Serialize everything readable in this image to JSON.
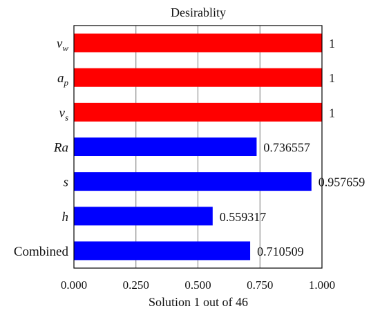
{
  "chart_data": {
    "type": "bar",
    "orientation": "horizontal",
    "title": "Desirablity",
    "xlabel": "Solution 1 out of 46",
    "ylabel": "",
    "xlim": [
      0,
      1
    ],
    "x_ticks": [
      "0.000",
      "0.250",
      "0.500",
      "0.750",
      "1.000"
    ],
    "grid": true,
    "categories": [
      {
        "main": "v",
        "sub": "w",
        "italic": true
      },
      {
        "main": "a",
        "sub": "p",
        "italic": true
      },
      {
        "main": "v",
        "sub": "s",
        "italic": true
      },
      {
        "main": "Ra",
        "sub": "",
        "italic": true
      },
      {
        "main": "s",
        "sub": "",
        "italic": true
      },
      {
        "main": "h",
        "sub": "",
        "italic": true
      },
      {
        "main": "Combined",
        "sub": "",
        "italic": false
      }
    ],
    "values": [
      1,
      1,
      1,
      0.736557,
      0.957659,
      0.559317,
      0.710509
    ],
    "value_labels": [
      "1",
      "1",
      "1",
      "0.736557",
      "0.957659",
      "0.559317",
      "0.710509"
    ],
    "bar_colors": [
      "#ff0000",
      "#ff0000",
      "#ff0000",
      "#0000ff",
      "#0000ff",
      "#0000ff",
      "#0000ff"
    ]
  }
}
